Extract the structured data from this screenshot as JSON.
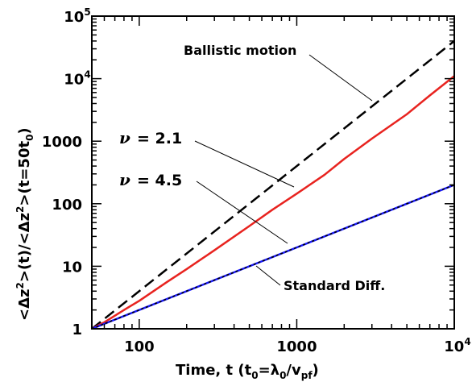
{
  "chart_data": {
    "type": "line",
    "title": "",
    "xlabel": {
      "main": "Time, t (t",
      "sub1": "0",
      "mid": "=λ",
      "sub2": "0",
      "slash": "/v",
      "sub3": "pf",
      "end": ")"
    },
    "ylabel": {
      "p1": "<Δz",
      "s1": "2",
      "p2": ">(t)/<Δz",
      "s2": "2",
      "p3": ">(t=50t",
      "s3": "0",
      "p4": ")"
    },
    "x_scale": "log",
    "y_scale": "log",
    "xlim": [
      50,
      10000
    ],
    "ylim": [
      1,
      100000
    ],
    "x_ticks": [
      {
        "value": 100,
        "label": "100"
      },
      {
        "value": 1000,
        "label": "1000"
      },
      {
        "value": 10000,
        "label": "10",
        "exp": "4"
      }
    ],
    "y_ticks": [
      {
        "value": 1,
        "label": "1"
      },
      {
        "value": 10,
        "label": "10"
      },
      {
        "value": 100,
        "label": "100"
      },
      {
        "value": 1000,
        "label": "1000"
      },
      {
        "value": 10000,
        "label": "10",
        "exp": "4"
      },
      {
        "value": 100000,
        "label": "10",
        "exp": "5"
      }
    ],
    "series": [
      {
        "id": "ballistic",
        "color": "#000000",
        "dash": "dashed",
        "x": [
          50,
          10000
        ],
        "y": [
          1,
          40000
        ]
      },
      {
        "id": "nu21",
        "color": "#e8231f",
        "dash": "solid",
        "x": [
          50,
          60,
          80,
          100,
          150,
          200,
          300,
          500,
          700,
          1000,
          1500,
          2000,
          3000,
          5000,
          7000,
          10000
        ],
        "y": [
          1,
          1.27,
          2.0,
          2.8,
          5.6,
          9.0,
          18,
          44,
          80,
          145,
          290,
          520,
          1100,
          2700,
          5400,
          11000
        ]
      },
      {
        "id": "nu45",
        "color": "#1a1aff",
        "dash": "solid",
        "x": [
          50,
          10000
        ],
        "y": [
          1,
          200
        ]
      },
      {
        "id": "standard",
        "color": "#000000",
        "dash": "dotted",
        "x": [
          50,
          10000
        ],
        "y": [
          1,
          200
        ]
      }
    ],
    "annotations": [
      {
        "id": "ballistic-label",
        "text": "Ballistic motion"
      },
      {
        "id": "nu21-label",
        "symbol": "ν",
        "text": "= 2.1"
      },
      {
        "id": "nu45-label",
        "symbol": "ν",
        "text": "= 4.5"
      },
      {
        "id": "standard-label",
        "text": "Standard Diff."
      }
    ]
  }
}
